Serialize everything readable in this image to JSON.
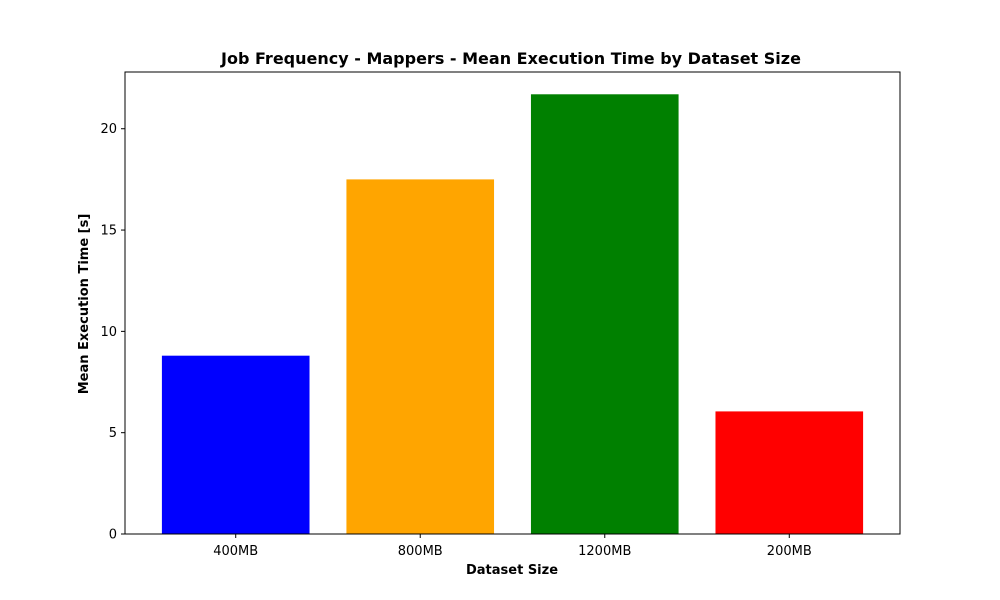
{
  "chart_data": {
    "type": "bar",
    "title": "Job Frequency - Mappers - Mean Execution Time by Dataset Size",
    "xlabel": "Dataset Size",
    "ylabel": "Mean Execution Time [s]",
    "categories": [
      "400MB",
      "800MB",
      "1200MB",
      "200MB"
    ],
    "values": [
      8.8,
      17.5,
      21.7,
      6.05
    ],
    "colors": [
      "#0000ff",
      "#ffa500",
      "#008000",
      "#ff0000"
    ],
    "ylim": [
      0,
      22.8
    ],
    "yticks": [
      0,
      5,
      10,
      15,
      20
    ],
    "grid": false
  }
}
